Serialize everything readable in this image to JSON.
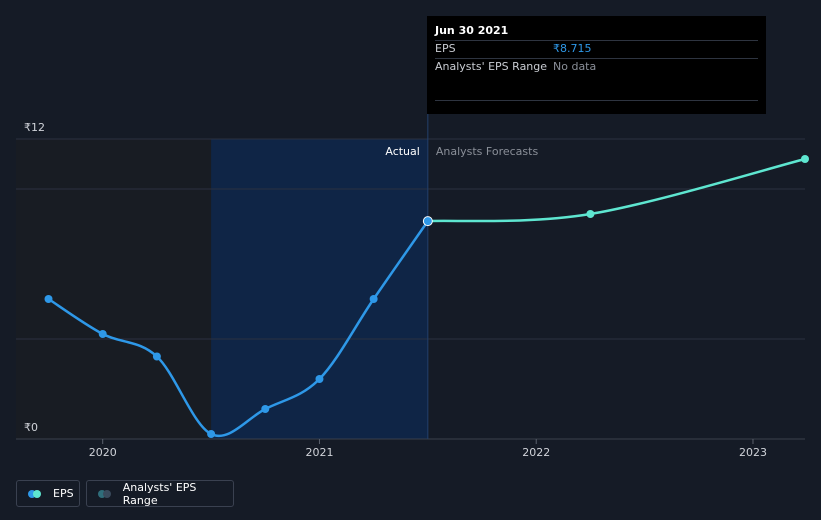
{
  "tooltip": {
    "date": "Jun 30 2021",
    "rows": [
      {
        "label": "EPS",
        "value": "₹8.715"
      },
      {
        "label": "Analysts' EPS Range",
        "value": "No data"
      }
    ]
  },
  "section_labels": {
    "actual": "Actual",
    "forecast": "Analysts Forecasts"
  },
  "legend": {
    "eps": "EPS",
    "range": "Analysts' EPS Range"
  },
  "colors": {
    "background": "#151b26",
    "actual_line": "#2e98e8",
    "forecast_line": "#5ee6d0",
    "highlight_band": "#0f2546",
    "past_band": "#181c23",
    "range_dot": "#2f6d7a"
  },
  "chart_data": {
    "type": "line",
    "y_tick_labels": [
      "₹12",
      "₹0"
    ],
    "ylim": [
      0,
      12
    ],
    "x_ticks": [
      {
        "label": "2020",
        "x": 2020.0
      },
      {
        "label": "2021",
        "x": 2021.0
      },
      {
        "label": "2022",
        "x": 2022.0
      },
      {
        "label": "2023",
        "x": 2023.0
      }
    ],
    "xlim": [
      2019.6,
      2023.24
    ],
    "series": [
      {
        "name": "EPS",
        "kind": "actual",
        "points": [
          {
            "x": 2019.75,
            "y": 5.6
          },
          {
            "x": 2020.0,
            "y": 4.2
          },
          {
            "x": 2020.25,
            "y": 3.3
          },
          {
            "x": 2020.5,
            "y": 0.2
          },
          {
            "x": 2020.75,
            "y": 1.2
          },
          {
            "x": 2021.0,
            "y": 2.4
          },
          {
            "x": 2021.25,
            "y": 5.6
          },
          {
            "x": 2021.5,
            "y": 8.715
          }
        ]
      },
      {
        "name": "EPS",
        "kind": "forecast",
        "points": [
          {
            "x": 2021.5,
            "y": 8.715
          },
          {
            "x": 2022.25,
            "y": 9.0
          },
          {
            "x": 2023.24,
            "y": 11.2
          }
        ]
      }
    ],
    "highlight_from": 2020.5,
    "highlight_to": 2021.5,
    "grid": true
  }
}
